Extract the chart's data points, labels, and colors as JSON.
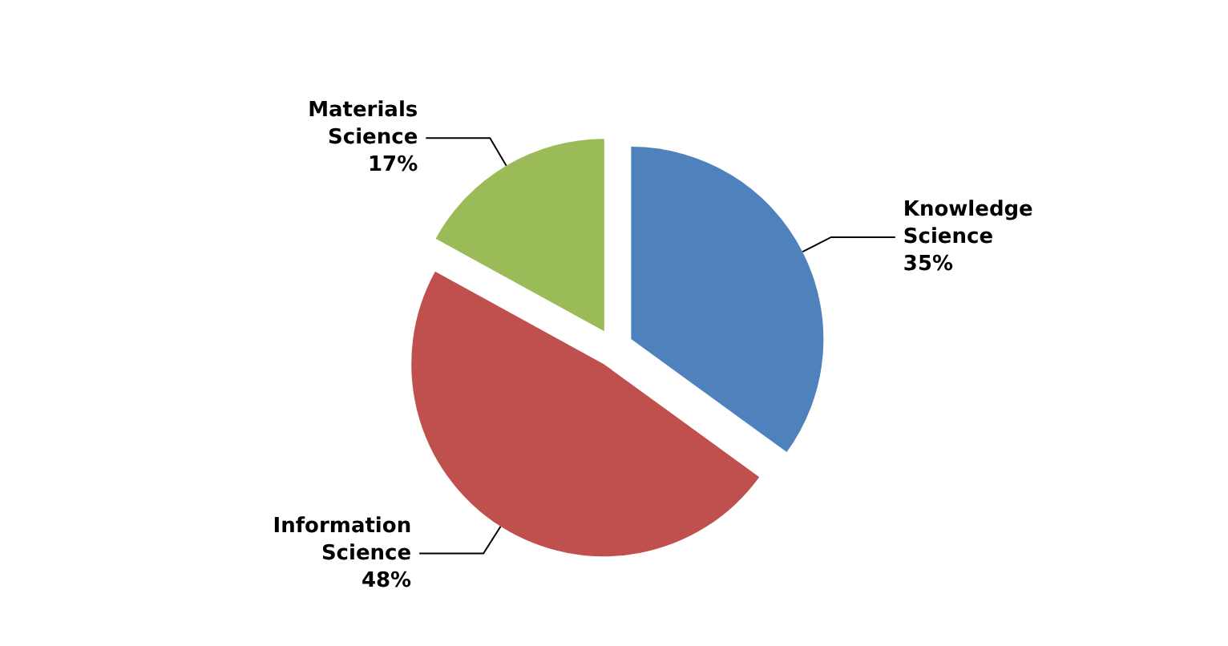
{
  "chart_data": {
    "type": "pie",
    "categories": [
      "Knowledge Science",
      "Information Science",
      "Materials Science"
    ],
    "values": [
      35,
      48,
      17
    ],
    "colors": [
      "#4f81bd",
      "#c0504d",
      "#9bbb59"
    ],
    "value_labels": [
      "35%",
      "48%",
      "17%"
    ],
    "legend": false
  }
}
